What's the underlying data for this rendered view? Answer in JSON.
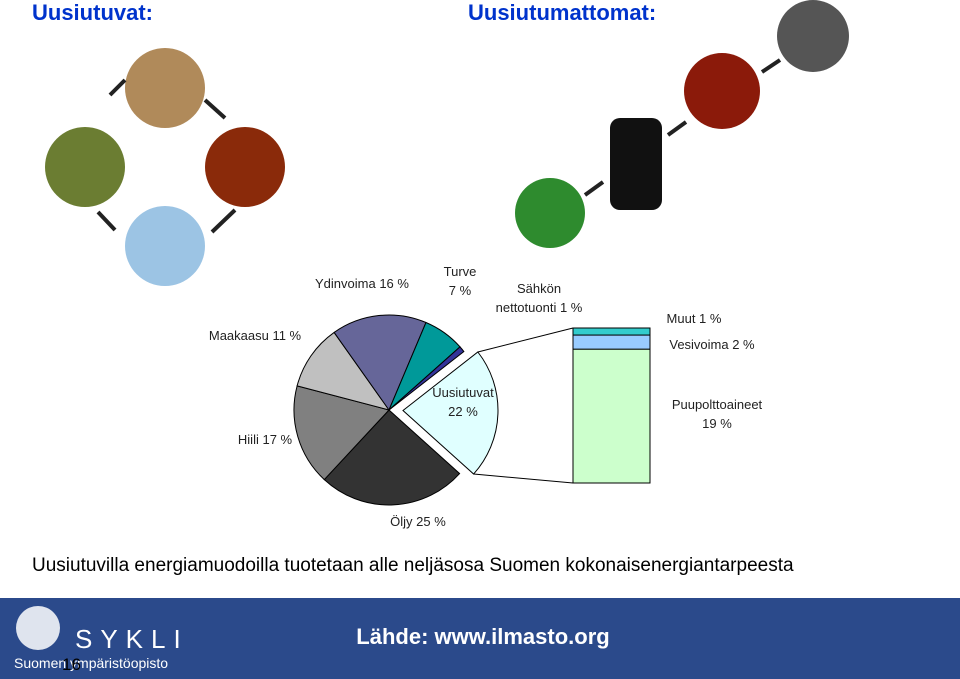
{
  "header": {
    "left_title": "Uusiutuvat:",
    "right_title": "Uusiutumattomat:"
  },
  "chart_data": {
    "type": "pie-of-bar",
    "slices": [
      {
        "label_lines": [
          "Uusiutuvat",
          "22 %"
        ],
        "value": 22,
        "color": "#e0ffff"
      },
      {
        "label_lines": [
          "Öljy 25 %"
        ],
        "value": 25,
        "color": "#333333"
      },
      {
        "label_lines": [
          "Hiili 17 %"
        ],
        "value": 17,
        "color": "#808080"
      },
      {
        "label_lines": [
          "Maakaasu 11 %"
        ],
        "value": 11,
        "color": "#c0c0c0"
      },
      {
        "label_lines": [
          "Ydinvoima 16 %"
        ],
        "value": 16,
        "color": "#666699"
      },
      {
        "label_lines": [
          "Turve",
          "7 %"
        ],
        "value": 7,
        "color": "#009999"
      },
      {
        "label_lines": [
          "Sähkön",
          "nettotuonti 1 %"
        ],
        "value": 1,
        "color": "#333399"
      }
    ],
    "breakdown": [
      {
        "label_lines": [
          "Puupolttoaineet",
          "19 %"
        ],
        "value": 19,
        "color": "#ccffcc"
      },
      {
        "label_lines": [
          "Vesivoima 2 %"
        ],
        "value": 2,
        "color": "#99ccff"
      },
      {
        "label_lines": [
          "Muut 1 %"
        ],
        "value": 1,
        "color": "#33cccc"
      }
    ]
  },
  "caption": "Uusiutuvilla energiamuodoilla tuotetaan alle neljäsosa Suomen kokonaisenergiantarpeesta",
  "footer": {
    "logo_name": "SYKLI",
    "logo_sub": "Suomen ympäristöopisto",
    "page": "16",
    "source": "Lähde: www.ilmasto.org"
  }
}
